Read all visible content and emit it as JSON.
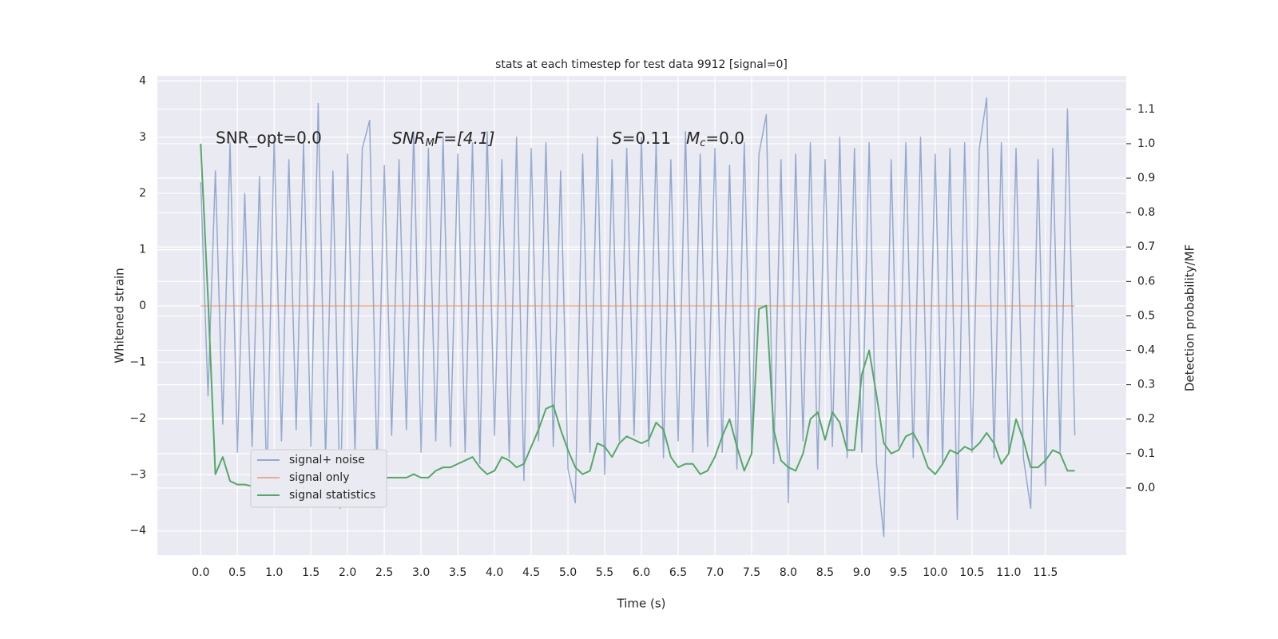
{
  "chart_data": {
    "type": "line",
    "title": "stats at each timestep for test data 9912 [signal=0]",
    "xlabel": "Time (s)",
    "ylabel": "Whitened strain",
    "y2label": "Detection probability/MF",
    "annotations": [
      "SNR_opt=0.0",
      [
        "SNR",
        "M",
        "F=[4.1]"
      ],
      [
        "S",
        "=0.11"
      ],
      [
        "M",
        "c",
        "=0.0"
      ]
    ],
    "x": [
      0,
      0.1,
      0.2,
      0.3,
      0.4,
      0.5,
      0.6,
      0.7,
      0.8,
      0.9,
      1,
      1.1,
      1.2,
      1.3,
      1.4,
      1.5,
      1.6,
      1.7,
      1.8,
      1.9,
      2,
      2.1,
      2.2,
      2.3,
      2.4,
      2.5,
      2.6,
      2.7,
      2.8,
      2.9,
      3,
      3.1,
      3.2,
      3.3,
      3.4,
      3.5,
      3.6,
      3.7,
      3.8,
      3.9,
      4,
      4.1,
      4.2,
      4.3,
      4.4,
      4.5,
      4.6,
      4.7,
      4.8,
      4.9,
      5,
      5.1,
      5.2,
      5.3,
      5.4,
      5.5,
      5.6,
      5.7,
      5.8,
      5.9,
      6,
      6.1,
      6.2,
      6.3,
      6.4,
      6.5,
      6.6,
      6.7,
      6.8,
      6.9,
      7,
      7.1,
      7.2,
      7.3,
      7.4,
      7.5,
      7.6,
      7.7,
      7.8,
      7.9,
      8,
      8.1,
      8.2,
      8.3,
      8.4,
      8.5,
      8.6,
      8.7,
      8.8,
      8.9,
      9,
      9.1,
      9.2,
      9.3,
      9.4,
      9.5,
      9.6,
      9.7,
      9.8,
      9.9,
      10,
      10.1,
      10.2,
      10.3,
      10.4,
      10.5,
      10.6,
      10.7,
      10.8,
      10.9,
      11,
      11.1,
      11.2,
      11.3,
      11.4,
      11.5,
      11.6,
      11.7,
      11.8,
      11.9
    ],
    "series": [
      {
        "name": "signal+ noise",
        "color": "#4c72b0",
        "opacity": 0.55,
        "values": [
          2.2,
          -1.6,
          2.4,
          -2.1,
          2.9,
          -2.6,
          2.0,
          -2.5,
          2.3,
          -3.2,
          3.0,
          -2.4,
          2.6,
          -2.2,
          2.9,
          -2.5,
          3.6,
          -2.7,
          2.4,
          -3.6,
          2.7,
          -2.6,
          2.8,
          3.3,
          -2.9,
          2.5,
          -2.3,
          2.6,
          -2.2,
          3.1,
          -2.6,
          2.8,
          -2.4,
          3.0,
          -2.5,
          2.7,
          -2.6,
          2.9,
          -2.8,
          3.1,
          -2.3,
          2.6,
          -2.7,
          3.0,
          -3.1,
          2.8,
          -2.4,
          2.9,
          -2.5,
          2.4,
          -2.9,
          -3.5,
          2.7,
          -2.6,
          3.0,
          -3.0,
          2.6,
          -2.4,
          2.8,
          -2.3,
          3.0,
          -2.5,
          2.9,
          -2.7,
          2.6,
          -2.4,
          3.1,
          -2.6,
          2.7,
          -2.5,
          2.8,
          -2.6,
          2.5,
          -2.9,
          2.9,
          -2.5,
          2.7,
          3.4,
          -2.8,
          2.6,
          -3.5,
          2.7,
          -2.4,
          2.9,
          -2.9,
          2.6,
          -2.5,
          3.0,
          -2.7,
          2.8,
          -2.6,
          2.9,
          -2.8,
          -4.1,
          2.6,
          -2.5,
          2.9,
          -2.7,
          3.0,
          -2.6,
          2.7,
          -2.8,
          2.8,
          -3.8,
          2.9,
          -2.6,
          2.8,
          3.7,
          -2.7,
          2.9,
          -2.6,
          2.8,
          -2.7,
          -3.6,
          2.6,
          -3.2,
          2.8,
          -2.6,
          3.5,
          -2.3
        ]
      },
      {
        "name": "signal only",
        "color": "#dd8452",
        "opacity": 0.6,
        "values": [
          0,
          0,
          0,
          0,
          0,
          0,
          0,
          0,
          0,
          0,
          0,
          0,
          0,
          0,
          0,
          0,
          0,
          0,
          0,
          0,
          0,
          0,
          0,
          0,
          0,
          0,
          0,
          0,
          0,
          0,
          0,
          0,
          0,
          0,
          0,
          0,
          0,
          0,
          0,
          0,
          0,
          0,
          0,
          0,
          0,
          0,
          0,
          0,
          0,
          0,
          0,
          0,
          0,
          0,
          0,
          0,
          0,
          0,
          0,
          0,
          0,
          0,
          0,
          0,
          0,
          0,
          0,
          0,
          0,
          0,
          0,
          0,
          0,
          0,
          0,
          0,
          0,
          0,
          0,
          0,
          0,
          0,
          0,
          0,
          0,
          0,
          0,
          0,
          0,
          0,
          0,
          0,
          0,
          0,
          0,
          0,
          0,
          0,
          0,
          0,
          0,
          0,
          0,
          0,
          0,
          0,
          0,
          0,
          0,
          0,
          0,
          0,
          0,
          0,
          0,
          0,
          0,
          0,
          0,
          0
        ]
      },
      {
        "name": "signal statistics",
        "color": "#55a868",
        "opacity": 1,
        "axis": "y2",
        "values": [
          1.0,
          0.55,
          0.04,
          0.09,
          0.02,
          0.01,
          0.01,
          0.005,
          0.005,
          0.01,
          0.01,
          0.01,
          0.02,
          0.04,
          0.02,
          0.01,
          0.02,
          0.02,
          0.04,
          0.03,
          0.03,
          0.03,
          0.02,
          0.02,
          0.03,
          0.03,
          0.03,
          0.03,
          0.03,
          0.04,
          0.03,
          0.03,
          0.05,
          0.06,
          0.06,
          0.07,
          0.08,
          0.09,
          0.06,
          0.04,
          0.05,
          0.09,
          0.08,
          0.06,
          0.07,
          0.12,
          0.17,
          0.23,
          0.24,
          0.17,
          0.11,
          0.06,
          0.04,
          0.05,
          0.13,
          0.12,
          0.09,
          0.13,
          0.15,
          0.14,
          0.13,
          0.14,
          0.19,
          0.17,
          0.09,
          0.06,
          0.07,
          0.07,
          0.04,
          0.05,
          0.09,
          0.15,
          0.2,
          0.12,
          0.05,
          0.1,
          0.52,
          0.53,
          0.17,
          0.08,
          0.06,
          0.05,
          0.1,
          0.2,
          0.22,
          0.14,
          0.22,
          0.19,
          0.11,
          0.11,
          0.33,
          0.4,
          0.27,
          0.13,
          0.1,
          0.11,
          0.15,
          0.16,
          0.12,
          0.06,
          0.04,
          0.07,
          0.11,
          0.1,
          0.12,
          0.11,
          0.13,
          0.16,
          0.13,
          0.07,
          0.1,
          0.2,
          0.14,
          0.06,
          0.06,
          0.08,
          0.11,
          0.1,
          0.05,
          0.05
        ]
      }
    ],
    "xlim": [
      -0.59,
      12.6
    ],
    "xticks": [
      {
        "value": 0,
        "label": "0.0"
      },
      {
        "value": 0.5,
        "label": "0.5"
      },
      {
        "value": 1,
        "label": "1.0"
      },
      {
        "value": 1.5,
        "label": "1.5"
      },
      {
        "value": 2,
        "label": "2.0"
      },
      {
        "value": 2.5,
        "label": "2.5"
      },
      {
        "value": 3,
        "label": "3.0"
      },
      {
        "value": 3.5,
        "label": "3.5"
      },
      {
        "value": 4,
        "label": "4.0"
      },
      {
        "value": 4.5,
        "label": "4.5"
      },
      {
        "value": 5,
        "label": "5.0"
      },
      {
        "value": 5.5,
        "label": "5.5"
      },
      {
        "value": 6,
        "label": "6.0"
      },
      {
        "value": 6.5,
        "label": "6.5"
      },
      {
        "value": 7,
        "label": "7.0"
      },
      {
        "value": 7.5,
        "label": "7.5"
      },
      {
        "value": 8,
        "label": "8.0"
      },
      {
        "value": 8.5,
        "label": "8.5"
      },
      {
        "value": 9,
        "label": "9.0"
      },
      {
        "value": 9.5,
        "label": "9.5"
      },
      {
        "value": 10,
        "label": "10.0"
      },
      {
        "value": 10.5,
        "label": "10.5"
      },
      {
        "value": 11,
        "label": "11.0"
      },
      {
        "value": 11.5,
        "label": "11.5"
      }
    ],
    "ylim": [
      -4.43,
      4.09
    ],
    "yticks": [
      {
        "value": -4,
        "label": "−4"
      },
      {
        "value": -3,
        "label": "−3"
      },
      {
        "value": -2,
        "label": "−2"
      },
      {
        "value": -1,
        "label": "−1"
      },
      0,
      1,
      2,
      3,
      4
    ],
    "y2lim": [
      -0.195,
      1.197
    ],
    "y2ticks": [
      {
        "value": 0,
        "label": "0.0"
      },
      0.1,
      0.2,
      0.3,
      0.4,
      0.5,
      0.6,
      0.7,
      0.8,
      0.9,
      {
        "value": 1,
        "label": "1.0"
      },
      1.1
    ],
    "grid": true,
    "legend": "lower left"
  }
}
